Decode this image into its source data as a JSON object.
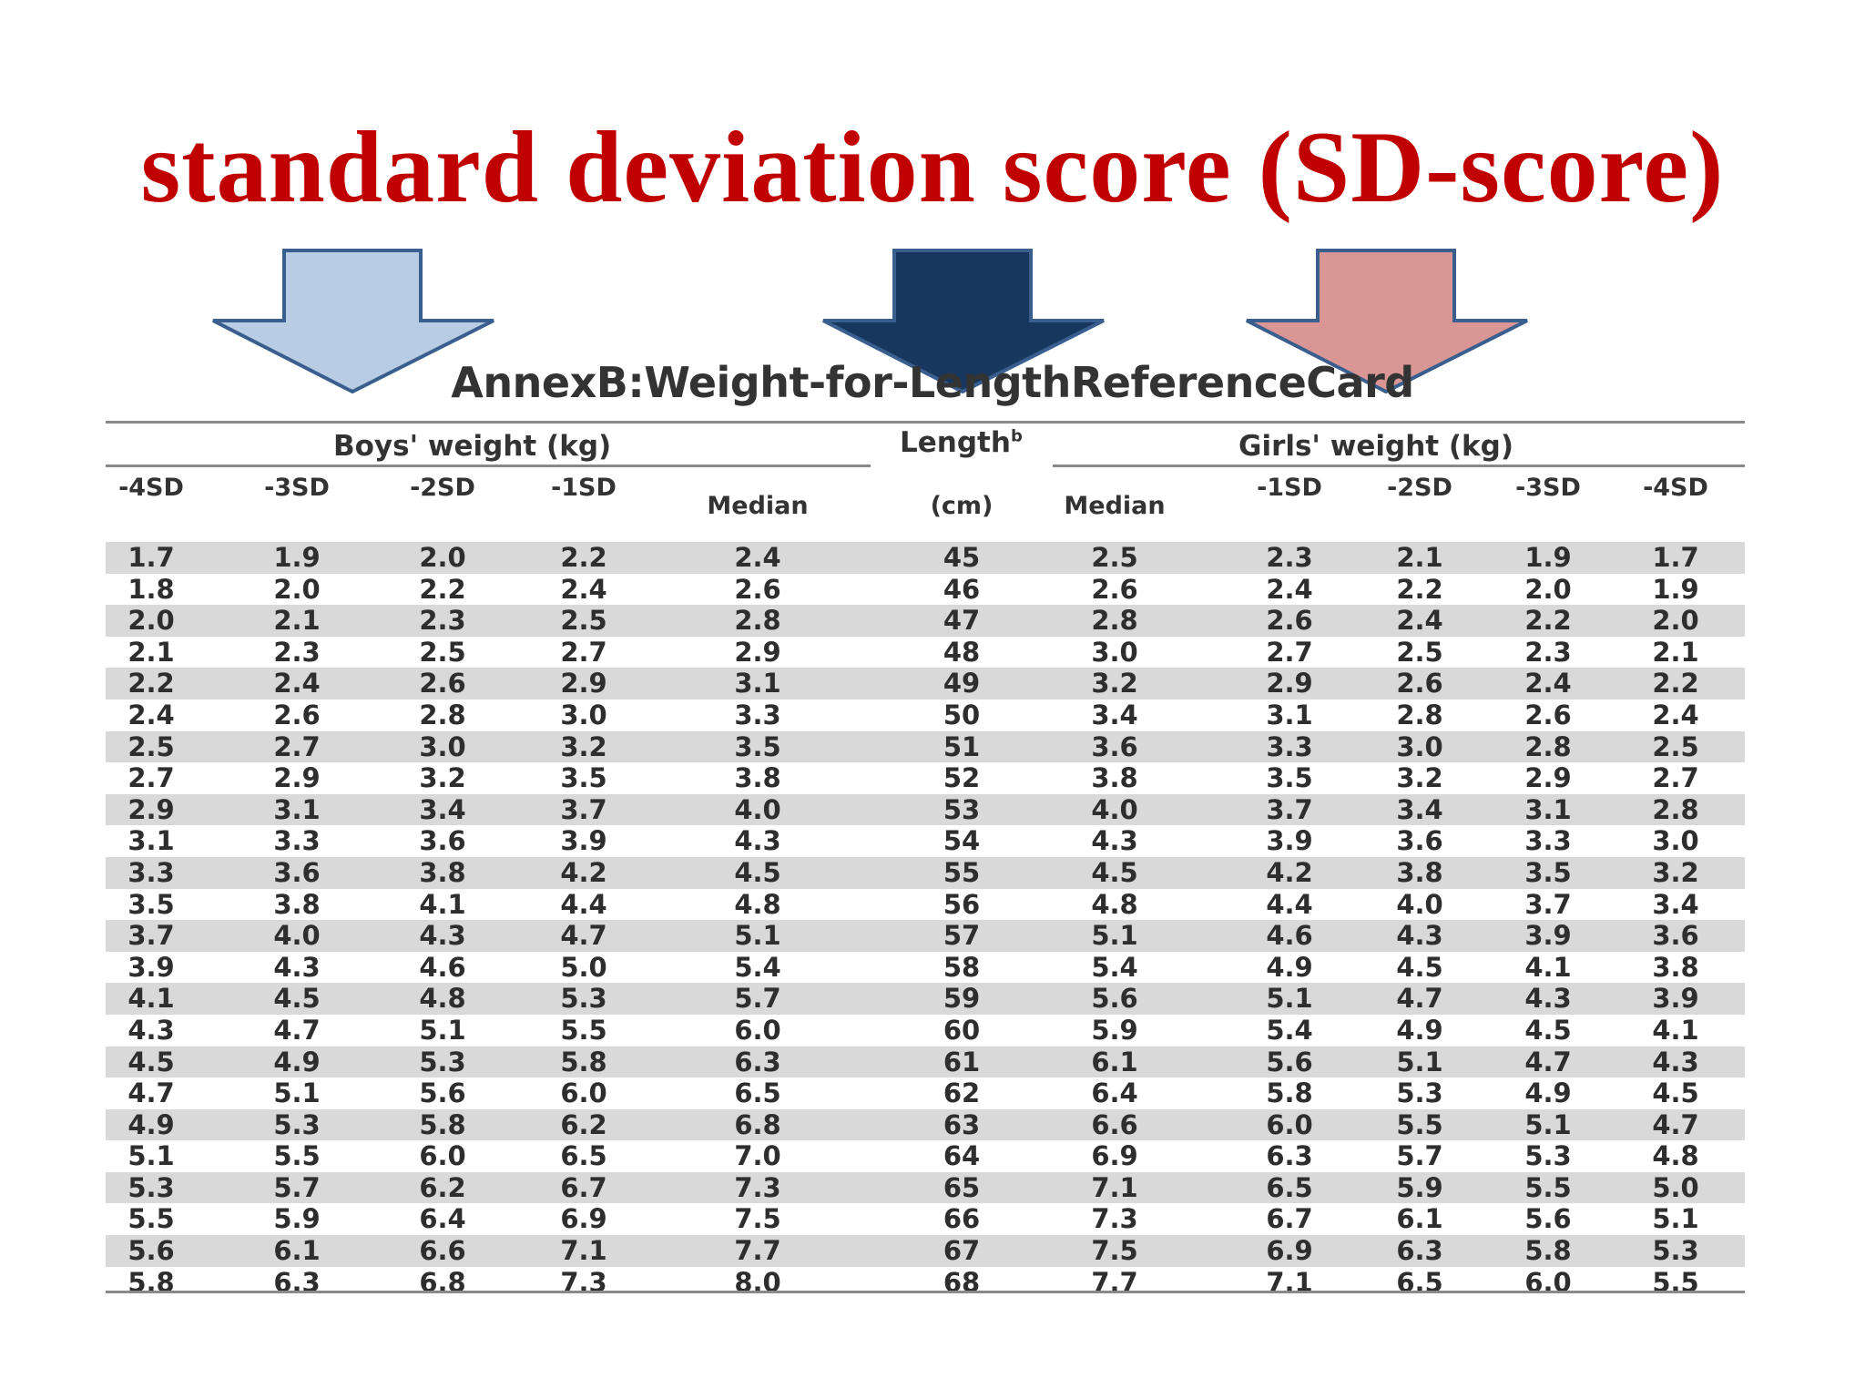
{
  "slide_title": "standard deviation score (SD-score)",
  "arrows": {
    "left_color": "#b8cce4",
    "center_color": "#17375e",
    "right_color": "#d99694",
    "outline_color": "#3a5f8f"
  },
  "card_title": "AnnexB:Weight-for-LengthReferenceCard",
  "groups": {
    "boys": "Boys' weight (kg)",
    "length": "Length",
    "length_sup": "b",
    "girls": "Girls' weight (kg)"
  },
  "columns": {
    "b4": "-4SD",
    "b3": "-3SD",
    "b2": "-2SD",
    "b1": "-1SD",
    "bmed": "Median",
    "len": "(cm)",
    "gmed": "Median",
    "g1": "-1SD",
    "g2": "-2SD",
    "g3": "-3SD",
    "g4": "-4SD"
  },
  "rows": [
    [
      "1.7",
      "1.9",
      "2.0",
      "2.2",
      "2.4",
      "45",
      "2.5",
      "2.3",
      "2.1",
      "1.9",
      "1.7"
    ],
    [
      "1.8",
      "2.0",
      "2.2",
      "2.4",
      "2.6",
      "46",
      "2.6",
      "2.4",
      "2.2",
      "2.0",
      "1.9"
    ],
    [
      "2.0",
      "2.1",
      "2.3",
      "2.5",
      "2.8",
      "47",
      "2.8",
      "2.6",
      "2.4",
      "2.2",
      "2.0"
    ],
    [
      "2.1",
      "2.3",
      "2.5",
      "2.7",
      "2.9",
      "48",
      "3.0",
      "2.7",
      "2.5",
      "2.3",
      "2.1"
    ],
    [
      "2.2",
      "2.4",
      "2.6",
      "2.9",
      "3.1",
      "49",
      "3.2",
      "2.9",
      "2.6",
      "2.4",
      "2.2"
    ],
    [
      "2.4",
      "2.6",
      "2.8",
      "3.0",
      "3.3",
      "50",
      "3.4",
      "3.1",
      "2.8",
      "2.6",
      "2.4"
    ],
    [
      "2.5",
      "2.7",
      "3.0",
      "3.2",
      "3.5",
      "51",
      "3.6",
      "3.3",
      "3.0",
      "2.8",
      "2.5"
    ],
    [
      "2.7",
      "2.9",
      "3.2",
      "3.5",
      "3.8",
      "52",
      "3.8",
      "3.5",
      "3.2",
      "2.9",
      "2.7"
    ],
    [
      "2.9",
      "3.1",
      "3.4",
      "3.7",
      "4.0",
      "53",
      "4.0",
      "3.7",
      "3.4",
      "3.1",
      "2.8"
    ],
    [
      "3.1",
      "3.3",
      "3.6",
      "3.9",
      "4.3",
      "54",
      "4.3",
      "3.9",
      "3.6",
      "3.3",
      "3.0"
    ],
    [
      "3.3",
      "3.6",
      "3.8",
      "4.2",
      "4.5",
      "55",
      "4.5",
      "4.2",
      "3.8",
      "3.5",
      "3.2"
    ],
    [
      "3.5",
      "3.8",
      "4.1",
      "4.4",
      "4.8",
      "56",
      "4.8",
      "4.4",
      "4.0",
      "3.7",
      "3.4"
    ],
    [
      "3.7",
      "4.0",
      "4.3",
      "4.7",
      "5.1",
      "57",
      "5.1",
      "4.6",
      "4.3",
      "3.9",
      "3.6"
    ],
    [
      "3.9",
      "4.3",
      "4.6",
      "5.0",
      "5.4",
      "58",
      "5.4",
      "4.9",
      "4.5",
      "4.1",
      "3.8"
    ],
    [
      "4.1",
      "4.5",
      "4.8",
      "5.3",
      "5.7",
      "59",
      "5.6",
      "5.1",
      "4.7",
      "4.3",
      "3.9"
    ],
    [
      "4.3",
      "4.7",
      "5.1",
      "5.5",
      "6.0",
      "60",
      "5.9",
      "5.4",
      "4.9",
      "4.5",
      "4.1"
    ],
    [
      "4.5",
      "4.9",
      "5.3",
      "5.8",
      "6.3",
      "61",
      "6.1",
      "5.6",
      "5.1",
      "4.7",
      "4.3"
    ],
    [
      "4.7",
      "5.1",
      "5.6",
      "6.0",
      "6.5",
      "62",
      "6.4",
      "5.8",
      "5.3",
      "4.9",
      "4.5"
    ],
    [
      "4.9",
      "5.3",
      "5.8",
      "6.2",
      "6.8",
      "63",
      "6.6",
      "6.0",
      "5.5",
      "5.1",
      "4.7"
    ],
    [
      "5.1",
      "5.5",
      "6.0",
      "6.5",
      "7.0",
      "64",
      "6.9",
      "6.3",
      "5.7",
      "5.3",
      "4.8"
    ],
    [
      "5.3",
      "5.7",
      "6.2",
      "6.7",
      "7.3",
      "65",
      "7.1",
      "6.5",
      "5.9",
      "5.5",
      "5.0"
    ],
    [
      "5.5",
      "5.9",
      "6.4",
      "6.9",
      "7.5",
      "66",
      "7.3",
      "6.7",
      "6.1",
      "5.6",
      "5.1"
    ],
    [
      "5.6",
      "6.1",
      "6.6",
      "7.1",
      "7.7",
      "67",
      "7.5",
      "6.9",
      "6.3",
      "5.8",
      "5.3"
    ],
    [
      "5.8",
      "6.3",
      "6.8",
      "7.3",
      "8.0",
      "68",
      "7.7",
      "7.1",
      "6.5",
      "6.0",
      "5.5"
    ]
  ]
}
